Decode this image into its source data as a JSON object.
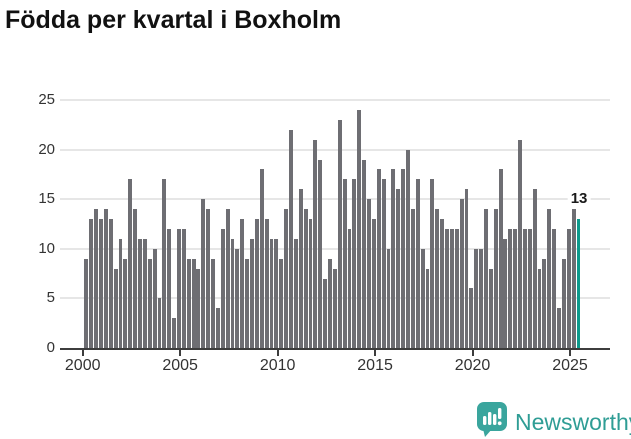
{
  "title": "Födda per kvartal i Boxholm",
  "logo": {
    "text": "Newsworthy",
    "icon": "newsworthy-pin-barchart-icon"
  },
  "colors": {
    "bar": "#6e6e73",
    "highlight": "#0d9a8c",
    "grid": "#e6e6e6",
    "axis": "#3d3d3d",
    "tick_text": "#333333",
    "title_text": "#111111",
    "logo_teal": "#2f9d95",
    "background": "#ffffff"
  },
  "chart_data": {
    "type": "bar",
    "title": "Födda per kvartal i Boxholm",
    "xlabel": "",
    "ylabel": "",
    "grid": "horizontal",
    "legend": "none",
    "x_ticks": [
      2000,
      2005,
      2010,
      2015,
      2020,
      2025
    ],
    "y_ticks": [
      0,
      5,
      10,
      15,
      20,
      25
    ],
    "ylim": [
      0,
      26.5
    ],
    "quarters": [
      "2000Q1",
      "2000Q2",
      "2000Q3",
      "2000Q4",
      "2001Q1",
      "2001Q2",
      "2001Q3",
      "2001Q4",
      "2002Q1",
      "2002Q2",
      "2002Q3",
      "2002Q4",
      "2003Q1",
      "2003Q2",
      "2003Q3",
      "2003Q4",
      "2004Q1",
      "2004Q2",
      "2004Q3",
      "2004Q4",
      "2005Q1",
      "2005Q2",
      "2005Q3",
      "2005Q4",
      "2006Q1",
      "2006Q2",
      "2006Q3",
      "2006Q4",
      "2007Q1",
      "2007Q2",
      "2007Q3",
      "2007Q4",
      "2008Q1",
      "2008Q2",
      "2008Q3",
      "2008Q4",
      "2009Q1",
      "2009Q2",
      "2009Q3",
      "2009Q4",
      "2010Q1",
      "2010Q2",
      "2010Q3",
      "2010Q4",
      "2011Q1",
      "2011Q2",
      "2011Q3",
      "2011Q4",
      "2012Q1",
      "2012Q2",
      "2012Q3",
      "2012Q4",
      "2013Q1",
      "2013Q2",
      "2013Q3",
      "2013Q4",
      "2014Q1",
      "2014Q2",
      "2014Q3",
      "2014Q4",
      "2015Q1",
      "2015Q2",
      "2015Q3",
      "2015Q4",
      "2016Q1",
      "2016Q2",
      "2016Q3",
      "2016Q4",
      "2017Q1",
      "2017Q2",
      "2017Q3",
      "2017Q4",
      "2018Q1",
      "2018Q2",
      "2018Q3",
      "2018Q4",
      "2019Q1",
      "2019Q2",
      "2019Q3",
      "2019Q4",
      "2020Q1",
      "2020Q2",
      "2020Q3",
      "2020Q4",
      "2021Q1",
      "2021Q2",
      "2021Q3",
      "2021Q4",
      "2022Q1",
      "2022Q2",
      "2022Q3",
      "2022Q4",
      "2023Q1",
      "2023Q2",
      "2023Q3",
      "2023Q4",
      "2024Q1",
      "2024Q2",
      "2024Q3",
      "2024Q4",
      "2025Q1",
      "2025Q2"
    ],
    "values": [
      9,
      13,
      14,
      13,
      14,
      13,
      8,
      11,
      9,
      17,
      14,
      11,
      11,
      9,
      10,
      5,
      17,
      12,
      3,
      12,
      12,
      9,
      9,
      8,
      15,
      14,
      9,
      4,
      12,
      14,
      11,
      10,
      13,
      9,
      11,
      13,
      18,
      13,
      11,
      11,
      9,
      14,
      22,
      11,
      16,
      14,
      13,
      21,
      19,
      7,
      9,
      8,
      23,
      17,
      12,
      17,
      24,
      19,
      15,
      13,
      18,
      17,
      10,
      18,
      16,
      18,
      20,
      14,
      17,
      10,
      8,
      17,
      14,
      13,
      12,
      12,
      12,
      15,
      16,
      6,
      10,
      10,
      14,
      8,
      14,
      18,
      11,
      12,
      12,
      21,
      12,
      12,
      16,
      8,
      9,
      14,
      12,
      4,
      9,
      12,
      14,
      13
    ],
    "highlight_index": 101,
    "highlight_quarter": "2025Q2",
    "highlight_value_label": "13"
  }
}
